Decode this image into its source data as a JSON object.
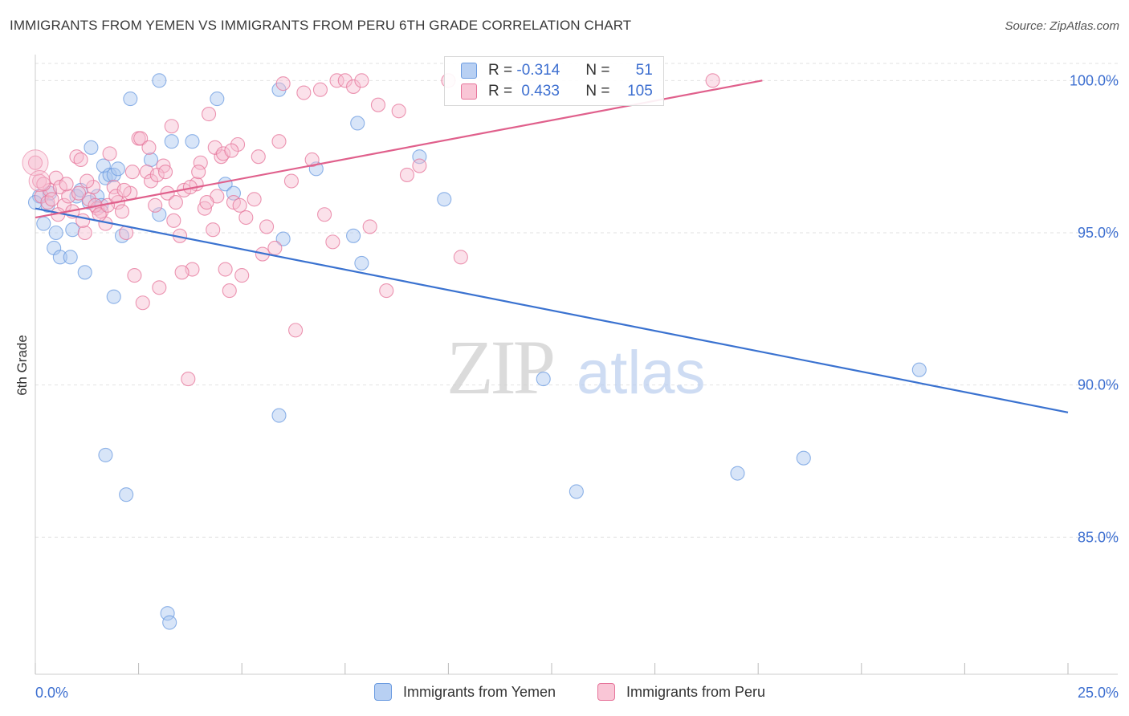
{
  "chart_data": {
    "type": "scatter",
    "title": "IMMIGRANTS FROM YEMEN VS IMMIGRANTS FROM PERU 6TH GRADE CORRELATION CHART",
    "source": "Source: ZipAtlas.com",
    "ylabel": "6th Grade",
    "xlim": [
      0,
      25
    ],
    "ylim": [
      80.5,
      100.8
    ],
    "x_tick_labels": [
      "0.0%",
      "25.0%"
    ],
    "y_ticks": [
      {
        "value": 100,
        "label": "100.0%"
      },
      {
        "value": 95,
        "label": "95.0%"
      },
      {
        "value": 90,
        "label": "90.0%"
      },
      {
        "value": 85,
        "label": "85.0%"
      }
    ],
    "watermark": {
      "zip": "ZIP",
      "atlas": "atlas"
    },
    "legend": {
      "r_label": "R =",
      "n_label": "N =",
      "entries": [
        {
          "name": "Immigrants from Yemen",
          "r": "-0.314",
          "n": "51"
        },
        {
          "name": "Immigrants from Peru",
          "r": "0.433",
          "n": "105"
        }
      ]
    },
    "series": [
      {
        "name": "Immigrants from Yemen",
        "color": "#6b9be0",
        "fill": "#a9c6f0",
        "trend": {
          "x0": 0,
          "y0": 95.8,
          "x1": 25,
          "y1": 89.1
        },
        "points": [
          [
            0.1,
            96.2
          ],
          [
            0.2,
            95.3
          ],
          [
            0.3,
            95.9
          ],
          [
            0.35,
            96.3
          ],
          [
            0.5,
            95.0
          ],
          [
            0.45,
            94.5
          ],
          [
            0.6,
            94.2
          ],
          [
            0.85,
            94.2
          ],
          [
            0.9,
            95.1
          ],
          [
            1.0,
            96.2
          ],
          [
            1.1,
            96.4
          ],
          [
            1.2,
            93.7
          ],
          [
            1.3,
            96.0
          ],
          [
            1.35,
            97.8
          ],
          [
            1.5,
            96.2
          ],
          [
            1.6,
            95.9
          ],
          [
            1.7,
            96.8
          ],
          [
            1.65,
            97.2
          ],
          [
            1.8,
            96.9
          ],
          [
            1.9,
            96.9
          ],
          [
            2.0,
            97.1
          ],
          [
            1.9,
            92.9
          ],
          [
            2.1,
            94.9
          ],
          [
            2.3,
            99.4
          ],
          [
            2.8,
            97.4
          ],
          [
            3.0,
            95.6
          ],
          [
            3.0,
            100.0
          ],
          [
            3.3,
            98.0
          ],
          [
            3.8,
            98.0
          ],
          [
            4.4,
            99.4
          ],
          [
            4.6,
            96.6
          ],
          [
            4.8,
            96.3
          ],
          [
            5.9,
            89.0
          ],
          [
            5.9,
            99.7
          ],
          [
            6.0,
            94.8
          ],
          [
            6.8,
            97.1
          ],
          [
            7.7,
            94.9
          ],
          [
            7.8,
            98.6
          ],
          [
            7.9,
            94.0
          ],
          [
            9.3,
            97.5
          ],
          [
            9.9,
            96.1
          ],
          [
            12.3,
            90.2
          ],
          [
            13.1,
            86.5
          ],
          [
            17.0,
            87.1
          ],
          [
            18.6,
            87.6
          ],
          [
            21.4,
            90.5
          ],
          [
            1.7,
            87.7
          ],
          [
            2.2,
            86.4
          ],
          [
            3.2,
            82.5
          ],
          [
            3.25,
            82.2
          ],
          [
            0.0,
            96.0
          ]
        ]
      },
      {
        "name": "Immigrants from Peru",
        "color": "#e6749a",
        "fill": "#f7bcd0",
        "trend": {
          "x0": 0,
          "y0": 95.5,
          "x1": 17.6,
          "y1": 100.0
        },
        "points": [
          [
            0.0,
            97.3
          ],
          [
            0.1,
            96.7
          ],
          [
            0.15,
            96.2
          ],
          [
            0.3,
            96.0
          ],
          [
            0.35,
            96.4
          ],
          [
            0.5,
            96.8
          ],
          [
            0.6,
            96.5
          ],
          [
            0.7,
            95.9
          ],
          [
            0.8,
            96.2
          ],
          [
            0.9,
            95.7
          ],
          [
            1.0,
            97.5
          ],
          [
            1.1,
            97.4
          ],
          [
            1.2,
            95.0
          ],
          [
            1.3,
            96.1
          ],
          [
            1.4,
            96.5
          ],
          [
            1.5,
            95.8
          ],
          [
            1.6,
            95.7
          ],
          [
            1.7,
            95.3
          ],
          [
            1.8,
            97.6
          ],
          [
            1.9,
            96.5
          ],
          [
            2.0,
            96.0
          ],
          [
            2.1,
            95.7
          ],
          [
            2.2,
            95.0
          ],
          [
            2.3,
            96.3
          ],
          [
            2.4,
            93.6
          ],
          [
            2.5,
            98.1
          ],
          [
            2.6,
            92.7
          ],
          [
            2.7,
            97.0
          ],
          [
            2.8,
            96.7
          ],
          [
            2.9,
            95.9
          ],
          [
            3.0,
            93.2
          ],
          [
            3.1,
            97.2
          ],
          [
            3.2,
            96.3
          ],
          [
            3.3,
            98.5
          ],
          [
            3.4,
            96.0
          ],
          [
            3.5,
            94.9
          ],
          [
            3.6,
            96.4
          ],
          [
            3.7,
            90.2
          ],
          [
            3.8,
            93.8
          ],
          [
            3.9,
            96.6
          ],
          [
            4.0,
            97.3
          ],
          [
            4.1,
            95.8
          ],
          [
            4.2,
            98.9
          ],
          [
            4.3,
            95.1
          ],
          [
            4.4,
            96.2
          ],
          [
            4.5,
            97.5
          ],
          [
            4.6,
            93.8
          ],
          [
            4.7,
            93.1
          ],
          [
            4.8,
            96.0
          ],
          [
            4.9,
            97.9
          ],
          [
            5.0,
            93.6
          ],
          [
            5.1,
            95.5
          ],
          [
            5.3,
            96.1
          ],
          [
            5.4,
            97.5
          ],
          [
            5.5,
            94.3
          ],
          [
            5.6,
            95.2
          ],
          [
            5.8,
            94.5
          ],
          [
            5.9,
            98.0
          ],
          [
            6.0,
            99.9
          ],
          [
            6.2,
            96.7
          ],
          [
            6.3,
            91.8
          ],
          [
            6.5,
            99.6
          ],
          [
            6.7,
            97.4
          ],
          [
            6.9,
            99.7
          ],
          [
            7.0,
            95.6
          ],
          [
            7.2,
            94.7
          ],
          [
            7.3,
            100.0
          ],
          [
            7.5,
            100.0
          ],
          [
            7.7,
            99.8
          ],
          [
            7.9,
            100.0
          ],
          [
            8.1,
            95.2
          ],
          [
            8.3,
            99.2
          ],
          [
            8.5,
            93.1
          ],
          [
            8.8,
            99.0
          ],
          [
            9.0,
            96.9
          ],
          [
            9.3,
            97.2
          ],
          [
            10.0,
            100.0
          ],
          [
            10.3,
            94.2
          ],
          [
            16.4,
            100.0
          ],
          [
            0.2,
            96.6
          ],
          [
            0.4,
            96.1
          ],
          [
            0.55,
            95.6
          ],
          [
            0.75,
            96.6
          ],
          [
            1.05,
            96.3
          ],
          [
            1.15,
            95.4
          ],
          [
            1.25,
            96.7
          ],
          [
            1.45,
            95.9
          ],
          [
            1.55,
            95.6
          ],
          [
            1.75,
            95.9
          ],
          [
            1.95,
            96.2
          ],
          [
            2.15,
            96.4
          ],
          [
            2.35,
            97.0
          ],
          [
            2.55,
            98.1
          ],
          [
            2.75,
            97.8
          ],
          [
            2.95,
            96.9
          ],
          [
            3.15,
            97.0
          ],
          [
            3.35,
            95.4
          ],
          [
            3.55,
            93.7
          ],
          [
            3.75,
            96.5
          ],
          [
            3.95,
            97.0
          ],
          [
            4.15,
            96.0
          ],
          [
            4.35,
            97.8
          ],
          [
            4.55,
            97.6
          ],
          [
            4.75,
            97.7
          ],
          [
            4.95,
            95.9
          ]
        ]
      }
    ]
  }
}
